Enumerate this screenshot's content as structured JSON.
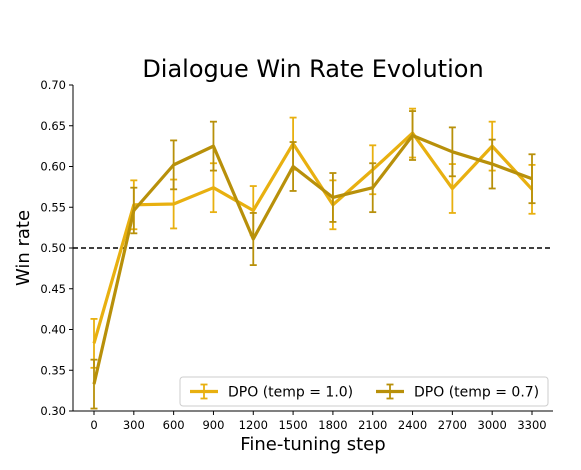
{
  "chart_data": {
    "type": "line",
    "title": "Dialogue Win Rate Evolution",
    "xlabel": "Fine-tuning step",
    "ylabel": "Win rate",
    "categories": [
      "0",
      "300",
      "600",
      "900",
      "1200",
      "1500",
      "1800",
      "2100",
      "2400",
      "2700",
      "3000",
      "3300"
    ],
    "x": [
      0,
      300,
      600,
      900,
      1200,
      1500,
      1800,
      2100,
      2400,
      2700,
      3000,
      3300
    ],
    "ylim": [
      0.3,
      0.7
    ],
    "yticks": [
      "0.30",
      "0.35",
      "0.40",
      "0.45",
      "0.50",
      "0.55",
      "0.60",
      "0.65",
      "0.70"
    ],
    "reference_line": {
      "y": 0.5,
      "style": "dashed",
      "color": "#000000"
    },
    "grid": false,
    "legend_position": "bottom-right",
    "series": [
      {
        "name": "DPO (temp = 1.0)",
        "color": "#E8B010",
        "values": [
          0.383,
          0.553,
          0.554,
          0.574,
          0.546,
          0.628,
          0.553,
          0.596,
          0.641,
          0.573,
          0.625,
          0.572
        ],
        "errors": [
          0.03,
          0.03,
          0.03,
          0.03,
          0.03,
          0.032,
          0.03,
          0.03,
          0.03,
          0.03,
          0.03,
          0.03
        ]
      },
      {
        "name": "DPO (temp = 0.7)",
        "color": "#B8900A",
        "values": [
          0.333,
          0.546,
          0.602,
          0.625,
          0.511,
          0.6,
          0.562,
          0.574,
          0.638,
          0.618,
          0.603,
          0.585
        ],
        "errors": [
          0.03,
          0.028,
          0.03,
          0.03,
          0.032,
          0.03,
          0.03,
          0.03,
          0.03,
          0.03,
          0.03,
          0.03
        ]
      }
    ]
  }
}
